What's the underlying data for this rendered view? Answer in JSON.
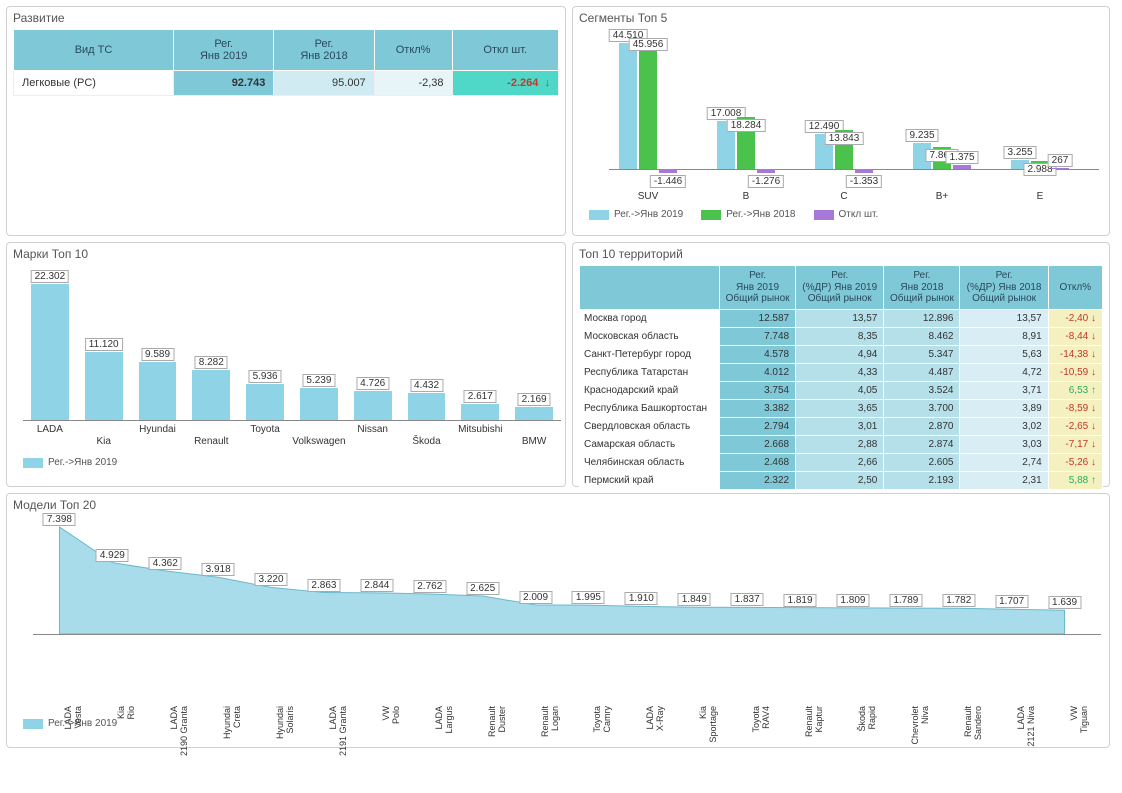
{
  "colors": {
    "bar_blue": "#8fd4e6",
    "bar_green": "#4bc24b",
    "bar_purple": "#a878d8",
    "area_fill": "#a8dceb",
    "axis": "#888888"
  },
  "development": {
    "title": "Развитие",
    "headers": [
      "Вид ТС",
      "Рег.\nЯнв 2019",
      "Рег.\nЯнв 2018",
      "Откл%",
      "Откл шт."
    ],
    "row": {
      "label": "Легковые (PC)",
      "reg2019": "92.743",
      "reg2018": "95.007",
      "pct": "-2,38",
      "delta": "-2.264"
    }
  },
  "segments": {
    "title": "Сегменты Топ 5",
    "categories": [
      "SUV",
      "B",
      "C",
      "B+",
      "E"
    ],
    "series": [
      {
        "name": "Рег.->Янв 2019",
        "color": "#8fd4e6",
        "values": [
          44510,
          17008,
          12490,
          9235,
          3255
        ],
        "labels": [
          "44.510",
          "17.008",
          "12.490",
          "9.235",
          "3.255"
        ]
      },
      {
        "name": "Рег.->Янв 2018",
        "color": "#4bc24b",
        "values": [
          45956,
          18284,
          13843,
          7860,
          2988
        ],
        "labels": [
          "45.956",
          "18.284",
          "13.843",
          "7.860",
          "2.988"
        ]
      },
      {
        "name": "Откл шт.",
        "color": "#a878d8",
        "values": [
          -1446,
          -1276,
          -1353,
          1375,
          267
        ],
        "labels": [
          "-1.446",
          "-1.276",
          "-1.353",
          "1.375",
          "267"
        ]
      }
    ],
    "ymax": 46000,
    "ymin": -2000
  },
  "brands": {
    "title": "Марки Топ 10",
    "legend": "Рег.->Янв 2019",
    "categories": [
      "LADA",
      "Kia",
      "Hyundai",
      "Renault",
      "Toyota",
      "Volkswagen",
      "Nissan",
      "Škoda",
      "Mitsubishi",
      "BMW"
    ],
    "values": [
      22302,
      11120,
      9589,
      8282,
      5936,
      5239,
      4726,
      4432,
      2617,
      2169
    ],
    "labels": [
      "22.302",
      "11.120",
      "9.589",
      "8.282",
      "5.936",
      "5.239",
      "4.726",
      "4.432",
      "2.617",
      "2.169"
    ],
    "ymax": 23000
  },
  "territories": {
    "title": "Топ 10 территорий",
    "headers": [
      "",
      "Рег.\nЯнв 2019\nОбщий рынок",
      "Рег.\n(%ДР) Янв 2019\nОбщий рынок",
      "Рег.\nЯнв 2018\nОбщий рынок",
      "Рег.\n(%ДР) Янв 2018\nОбщий рынок",
      "Откл%"
    ],
    "rows": [
      {
        "name": "Москва город",
        "a": "12.587",
        "b": "13,57",
        "c": "12.896",
        "d": "13,57",
        "pct": "-2,40",
        "dir": "down"
      },
      {
        "name": "Московская область",
        "a": "7.748",
        "b": "8,35",
        "c": "8.462",
        "d": "8,91",
        "pct": "-8,44",
        "dir": "down"
      },
      {
        "name": "Санкт-Петербург город",
        "a": "4.578",
        "b": "4,94",
        "c": "5.347",
        "d": "5,63",
        "pct": "-14,38",
        "dir": "down"
      },
      {
        "name": "Республика Татарстан",
        "a": "4.012",
        "b": "4,33",
        "c": "4.487",
        "d": "4,72",
        "pct": "-10,59",
        "dir": "down"
      },
      {
        "name": "Краснодарский край",
        "a": "3.754",
        "b": "4,05",
        "c": "3.524",
        "d": "3,71",
        "pct": "6,53",
        "dir": "up"
      },
      {
        "name": "Республика Башкортостан",
        "a": "3.382",
        "b": "3,65",
        "c": "3.700",
        "d": "3,89",
        "pct": "-8,59",
        "dir": "down"
      },
      {
        "name": "Свердловская область",
        "a": "2.794",
        "b": "3,01",
        "c": "2.870",
        "d": "3,02",
        "pct": "-2,65",
        "dir": "down"
      },
      {
        "name": "Самарская область",
        "a": "2.668",
        "b": "2,88",
        "c": "2.874",
        "d": "3,03",
        "pct": "-7,17",
        "dir": "down"
      },
      {
        "name": "Челябинская область",
        "a": "2.468",
        "b": "2,66",
        "c": "2.605",
        "d": "2,74",
        "pct": "-5,26",
        "dir": "down"
      },
      {
        "name": "Пермский край",
        "a": "2.322",
        "b": "2,50",
        "c": "2.193",
        "d": "2,31",
        "pct": "5,88",
        "dir": "up"
      }
    ]
  },
  "models": {
    "title": "Модели Топ 20",
    "legend": "Рег.->Янв 2019",
    "categories": [
      "LADA Vesta",
      "Kia Rio",
      "LADA 2190 Granta",
      "Hyundai Creta",
      "Hyundai Solaris",
      "LADA 2191 Granta",
      "VW Polo",
      "LADA Largus",
      "Renault Duster",
      "Renault Logan",
      "Toyota Camry",
      "LADA X-Ray",
      "Kia Sportage",
      "Toyota RAV4",
      "Renault Kaptur",
      "Škoda Rapid",
      "Chevrolet Niva",
      "Renault Sandero",
      "LADA 2121 Niva",
      "VW Tiguan"
    ],
    "values": [
      7398,
      4929,
      4362,
      3918,
      3220,
      2863,
      2844,
      2762,
      2625,
      2009,
      1995,
      1910,
      1849,
      1837,
      1819,
      1809,
      1789,
      1782,
      1707,
      1639
    ],
    "labels": [
      "7.398",
      "4.929",
      "4.362",
      "3.918",
      "3.220",
      "2.863",
      "2.844",
      "2.762",
      "2.625",
      "2.009",
      "1.995",
      "1.910",
      "1.849",
      "1.837",
      "1.819",
      "1.809",
      "1.789",
      "1.782",
      "1.707",
      "1.639"
    ],
    "ymax": 7600
  }
}
